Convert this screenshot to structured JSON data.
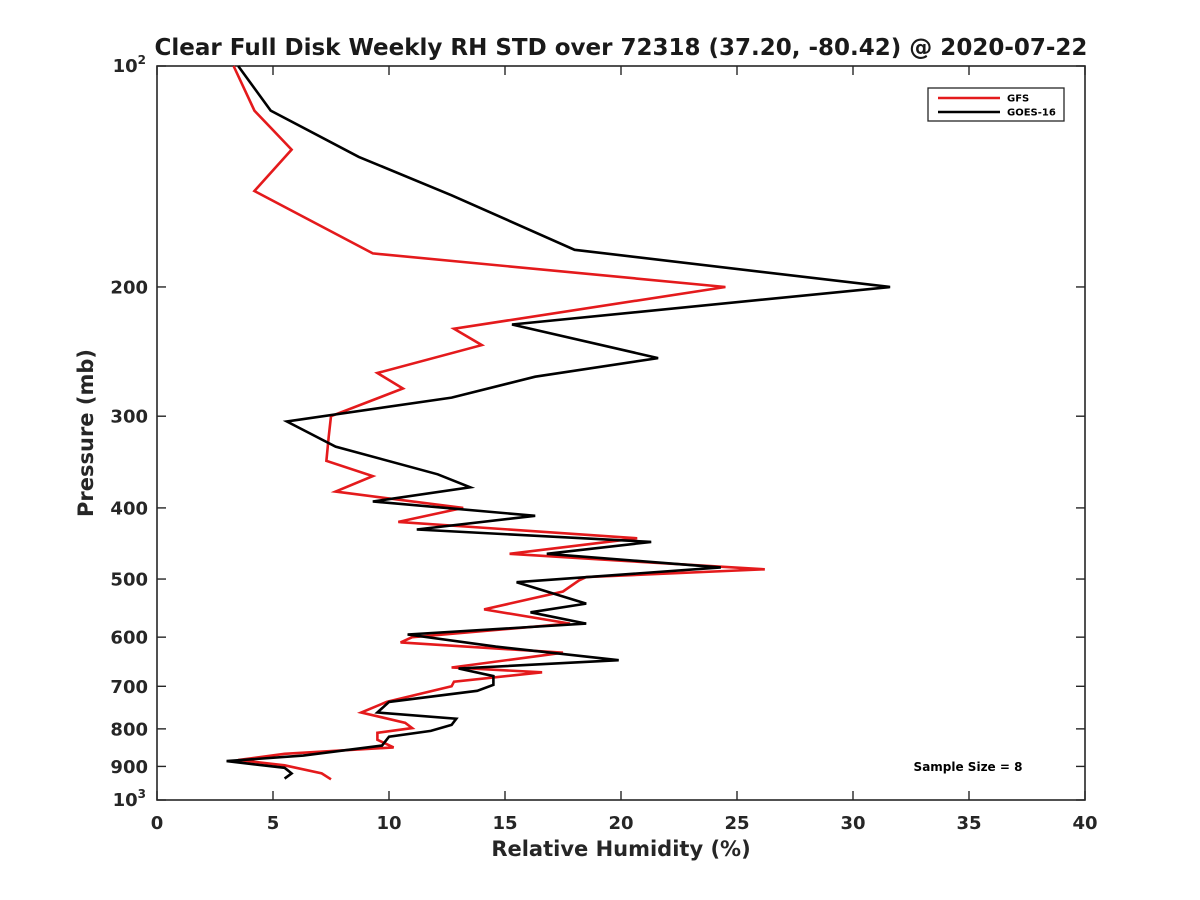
{
  "chart_data": {
    "type": "line",
    "title": "Clear Full Disk Weekly RH STD over 72318 (37.20, -80.42) @ 2020-07-22",
    "xlabel": "Relative Humidity (%)",
    "ylabel": "Pressure (mb)",
    "xlim": [
      0,
      40
    ],
    "ylim": [
      100,
      1000
    ],
    "y_scale": "log",
    "y_reversed": true,
    "x_ticks": [
      0,
      5,
      10,
      15,
      20,
      25,
      30,
      35,
      40
    ],
    "x_tick_labels": [
      "0",
      "5",
      "10",
      "15",
      "20",
      "25",
      "30",
      "35",
      "40"
    ],
    "y_ticks": [
      {
        "value": 100,
        "base": "10",
        "exp": "2"
      },
      {
        "value": 200,
        "label": "200"
      },
      {
        "value": 300,
        "label": "300"
      },
      {
        "value": 400,
        "label": "400"
      },
      {
        "value": 500,
        "label": "500"
      },
      {
        "value": 600,
        "label": "600"
      },
      {
        "value": 700,
        "label": "700"
      },
      {
        "value": 800,
        "label": "800"
      },
      {
        "value": 900,
        "label": "900"
      },
      {
        "value": 1000,
        "base": "10",
        "exp": "3"
      }
    ],
    "grid": false,
    "legend_position": "top-right",
    "annotation": "Sample Size = 8",
    "series": [
      {
        "name": "GFS",
        "color": "#e41a1c",
        "points": [
          [
            3.3,
            100
          ],
          [
            4.2,
            115
          ],
          [
            5.8,
            130
          ],
          [
            4.2,
            148
          ],
          [
            9.3,
            180
          ],
          [
            24.5,
            200
          ],
          [
            12.8,
            228
          ],
          [
            14.0,
            240
          ],
          [
            9.5,
            262
          ],
          [
            10.6,
            275
          ],
          [
            7.5,
            300
          ],
          [
            7.4,
            320
          ],
          [
            7.3,
            345
          ],
          [
            9.3,
            362
          ],
          [
            7.7,
            380
          ],
          [
            13.2,
            400
          ],
          [
            10.4,
            418
          ],
          [
            20.7,
            440
          ],
          [
            15.2,
            462
          ],
          [
            20.0,
            472
          ],
          [
            26.2,
            485
          ],
          [
            18.5,
            497
          ],
          [
            18.2,
            502
          ],
          [
            17.5,
            520
          ],
          [
            14.1,
            550
          ],
          [
            17.8,
            575
          ],
          [
            11.0,
            600
          ],
          [
            10.5,
            610
          ],
          [
            17.5,
            630
          ],
          [
            12.7,
            660
          ],
          [
            16.6,
            670
          ],
          [
            12.8,
            690
          ],
          [
            12.7,
            700
          ],
          [
            9.9,
            735
          ],
          [
            8.8,
            760
          ],
          [
            10.7,
            785
          ],
          [
            11.0,
            798
          ],
          [
            9.5,
            810
          ],
          [
            9.5,
            828
          ],
          [
            10.2,
            848
          ],
          [
            5.5,
            865
          ],
          [
            3.5,
            882
          ],
          [
            5.5,
            897
          ],
          [
            7.1,
            920
          ],
          [
            7.5,
            937
          ]
        ]
      },
      {
        "name": "GOES-16",
        "color": "#000000",
        "points": [
          [
            3.5,
            100
          ],
          [
            4.9,
            115
          ],
          [
            8.7,
            133
          ],
          [
            12.7,
            150
          ],
          [
            18.0,
            178
          ],
          [
            31.6,
            200
          ],
          [
            15.3,
            225
          ],
          [
            21.6,
            250
          ],
          [
            16.3,
            265
          ],
          [
            12.7,
            283
          ],
          [
            5.6,
            305
          ],
          [
            7.7,
            330
          ],
          [
            12.1,
            360
          ],
          [
            13.5,
            375
          ],
          [
            9.3,
            392
          ],
          [
            16.3,
            410
          ],
          [
            11.2,
            428
          ],
          [
            21.3,
            445
          ],
          [
            16.8,
            462
          ],
          [
            24.3,
            482
          ],
          [
            15.5,
            505
          ],
          [
            18.5,
            540
          ],
          [
            16.1,
            555
          ],
          [
            18.5,
            575
          ],
          [
            10.8,
            595
          ],
          [
            14.6,
            618
          ],
          [
            19.9,
            645
          ],
          [
            13.0,
            662
          ],
          [
            14.5,
            678
          ],
          [
            14.5,
            697
          ],
          [
            13.8,
            710
          ],
          [
            10.0,
            735
          ],
          [
            9.5,
            760
          ],
          [
            12.9,
            775
          ],
          [
            12.7,
            790
          ],
          [
            11.8,
            805
          ],
          [
            10.0,
            820
          ],
          [
            9.7,
            843
          ],
          [
            6.3,
            870
          ],
          [
            3.0,
            885
          ],
          [
            5.5,
            904
          ],
          [
            5.8,
            920
          ],
          [
            5.5,
            935
          ]
        ]
      }
    ]
  }
}
